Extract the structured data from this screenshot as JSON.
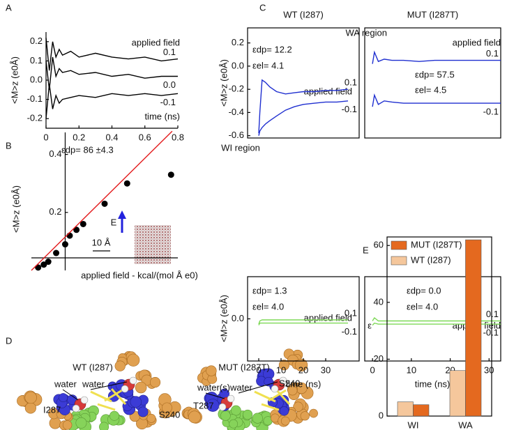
{
  "panel_labels": [
    "A",
    "B",
    "C",
    "D",
    "E"
  ],
  "chart_data": [
    {
      "type": "line",
      "ylabel": "<M>z (e0Å)",
      "xlabel": "time (ns)",
      "annotations": [
        "applied field"
      ],
      "xlim": [
        0,
        0.8
      ],
      "xticks": [
        0,
        0.2,
        0.4,
        0.6,
        0.8
      ],
      "ylim": [
        -0.25,
        0.25
      ],
      "yticks": [
        0.2,
        0.1,
        {
          "value": 0,
          "label": "0.0"
        },
        -0.1,
        -0.2
      ],
      "series": [
        {
          "name": "0.1",
          "color": "#000000",
          "x": [
            0,
            0.02,
            0.04,
            0.06,
            0.08,
            0.1,
            0.15,
            0.2,
            0.3,
            0.4,
            0.5,
            0.6,
            0.7,
            0.8
          ],
          "values": [
            0.22,
            0.05,
            0.2,
            0.12,
            0.16,
            0.13,
            0.15,
            0.12,
            0.14,
            0.12,
            0.11,
            0.12,
            0.1,
            0.11
          ]
        },
        {
          "name": "0.0",
          "color": "#000000",
          "x": [
            0,
            0.02,
            0.04,
            0.06,
            0.08,
            0.1,
            0.15,
            0.2,
            0.3,
            0.4,
            0.5,
            0.6,
            0.7,
            0.8
          ],
          "values": [
            0.1,
            -0.05,
            0.12,
            0.02,
            0.06,
            0.04,
            0.05,
            0.03,
            0.04,
            0.02,
            0.03,
            0.01,
            0.02,
            0.02
          ]
        },
        {
          "name": "-0.1",
          "color": "#000000",
          "x": [
            0,
            0.02,
            0.04,
            0.06,
            0.08,
            0.1,
            0.15,
            0.2,
            0.3,
            0.4,
            0.5,
            0.6,
            0.7,
            0.8
          ],
          "values": [
            -0.2,
            -0.02,
            -0.15,
            -0.08,
            -0.12,
            -0.1,
            -0.09,
            -0.08,
            -0.09,
            -0.07,
            -0.08,
            -0.07,
            -0.08,
            -0.07
          ]
        }
      ]
    },
    {
      "type": "scatter",
      "ylabel": "<M>z (e0Å)",
      "xlabel": "applied field - kcal/(mol Å e0)",
      "annotations": [
        "εdp= 86 ±4.3",
        "E",
        "10 Å"
      ],
      "xlim": [
        -0.3,
        1.0
      ],
      "ylim": [
        0,
        0.5
      ],
      "yticks": [
        0.2,
        0.4
      ],
      "series": [
        {
          "type": "scatter",
          "color": "#000000",
          "x": [
            -0.24,
            -0.19,
            -0.15,
            -0.08,
            0,
            0.04,
            0.1,
            0.16,
            0.35,
            0.55,
            0.94
          ],
          "values": [
            0.01,
            0.02,
            0.03,
            0.06,
            0.09,
            0.12,
            0.14,
            0.16,
            0.23,
            0.3,
            0.33
          ]
        },
        {
          "type": "line",
          "color": "#e31a1c",
          "x": [
            -0.3,
            0.95
          ],
          "values": [
            0,
            0.48
          ]
        }
      ]
    },
    {
      "type": "line",
      "title": "WT (I287)",
      "ylabel": "<M>z (e0Å)",
      "annotations": [
        "εdp= 12.2",
        "εel= 4.1",
        "applied field"
      ],
      "xlim": [
        -5,
        45
      ],
      "ylim": [
        -0.62,
        0.33
      ],
      "yticks": [
        0.2,
        {
          "value": 0,
          "label": "0.0"
        },
        -0.2,
        -0.4,
        -0.6
      ],
      "series": [
        {
          "name": "0.1",
          "color": "#1f2fd0",
          "x": [
            0,
            0.5,
            1.5,
            3,
            5,
            8,
            12,
            16,
            20,
            25,
            30,
            35,
            40
          ],
          "values": [
            -0.58,
            -0.4,
            -0.12,
            -0.14,
            -0.18,
            -0.22,
            -0.24,
            -0.23,
            -0.22,
            -0.22,
            -0.21,
            -0.21,
            -0.2
          ]
        },
        {
          "name": "-0.1",
          "color": "#1f2fd0",
          "x": [
            0,
            0.5,
            1.5,
            3,
            5,
            8,
            12,
            16,
            20,
            25,
            30,
            35,
            40
          ],
          "values": [
            -0.6,
            -0.56,
            -0.53,
            -0.5,
            -0.47,
            -0.43,
            -0.38,
            -0.35,
            -0.33,
            -0.32,
            -0.31,
            -0.31,
            -0.3
          ]
        }
      ]
    },
    {
      "type": "line",
      "title": "MUT (I287T)",
      "annotations": [
        "WA region",
        "applied field",
        "εdp= 57.5",
        "εel= 4.5"
      ],
      "xlim": [
        -2,
        33
      ],
      "ylim": [
        -0.62,
        0.33
      ],
      "series": [
        {
          "name": "0.1",
          "color": "#1f2fd0",
          "x": [
            0,
            0.5,
            1.5,
            3,
            5,
            8,
            12,
            16,
            20,
            25,
            30,
            33
          ],
          "values": [
            0.02,
            0.12,
            0.04,
            0.06,
            0.05,
            0.05,
            0.04,
            0.05,
            0.05,
            0.05,
            0.05,
            0.05
          ]
        },
        {
          "name": "-0.1",
          "color": "#1f2fd0",
          "x": [
            0,
            0.5,
            1.5,
            3,
            5,
            8,
            12,
            16,
            20,
            25,
            30,
            33
          ],
          "values": [
            -0.35,
            -0.25,
            -0.33,
            -0.3,
            -0.31,
            -0.32,
            -0.32,
            -0.32,
            -0.32,
            -0.32,
            -0.32,
            -0.32
          ]
        }
      ]
    },
    {
      "type": "line",
      "ylabel": "<M>z (e0Å)",
      "xlabel": "time (ns)",
      "annotations": [
        "WI region",
        "εdp= 1.3",
        "εel= 4.0",
        "applied field"
      ],
      "xlim": [
        -5,
        45
      ],
      "xticks": [
        0,
        10,
        20,
        30
      ],
      "ylim": [
        -0.4,
        0.4
      ],
      "yticks": [
        {
          "value": 0,
          "label": "0.0"
        }
      ],
      "series": [
        {
          "name": "0.1",
          "color": "#7ed957",
          "x": [
            0,
            0.5,
            1.5,
            3,
            5,
            8,
            12,
            16,
            20,
            25,
            30,
            35,
            40
          ],
          "values": [
            -0.05,
            -0.02,
            -0.01,
            -0.01,
            -0.01,
            -0.01,
            -0.01,
            -0.01,
            -0.01,
            -0.01,
            -0.01,
            -0.01,
            -0.01
          ]
        },
        {
          "name": "-0.1",
          "color": "#7ed957",
          "x": [
            0,
            0.5,
            1.5,
            3,
            5,
            8,
            12,
            16,
            20,
            25,
            30,
            35,
            40
          ],
          "values": [
            -0.06,
            -0.04,
            -0.04,
            -0.04,
            -0.04,
            -0.04,
            -0.04,
            -0.04,
            -0.04,
            -0.04,
            -0.04,
            -0.04,
            -0.04
          ]
        }
      ]
    },
    {
      "type": "line",
      "xlabel": "time (ns)",
      "annotations": [
        "εdp= 0.0",
        "εel= 4.0",
        "applied field"
      ],
      "xlim": [
        -2,
        33
      ],
      "xticks": [
        0,
        10,
        20,
        30
      ],
      "ylim": [
        -0.4,
        0.4
      ],
      "series": [
        {
          "name": "0.1",
          "color": "#7ed957",
          "x": [
            0,
            0.5,
            1.5,
            3,
            5,
            8,
            12,
            16,
            20,
            25,
            30,
            33
          ],
          "values": [
            -0.02,
            0.01,
            -0.02,
            -0.02,
            -0.02,
            -0.02,
            -0.02,
            -0.02,
            -0.02,
            -0.02,
            -0.02,
            -0.02
          ]
        },
        {
          "name": "-0.1",
          "color": "#7ed957",
          "x": [
            0,
            0.5,
            1.5,
            3,
            5,
            8,
            12,
            16,
            20,
            25,
            30,
            33
          ],
          "values": [
            -0.06,
            -0.04,
            -0.05,
            -0.05,
            -0.05,
            -0.05,
            -0.05,
            -0.05,
            -0.05,
            -0.05,
            -0.05,
            -0.05
          ]
        }
      ]
    },
    {
      "type": "bar",
      "ylabel": "ε",
      "categories": [
        "WI",
        "WA"
      ],
      "legend": "upper left",
      "ylim": [
        0,
        63
      ],
      "yticks": [
        0,
        20,
        40,
        60
      ],
      "series": [
        {
          "name": "MUT (I287T)",
          "color": "#e4691f",
          "values": [
            4,
            62
          ]
        },
        {
          "name": "WT (I287)",
          "color": "#f5c79c",
          "values": [
            5,
            16
          ]
        }
      ]
    }
  ],
  "panel_d": {
    "left": {
      "title": "WT (I287)",
      "labels": [
        "water",
        "water",
        "I287",
        "S240"
      ]
    },
    "right": {
      "title": "MUT (I287T)",
      "labels": [
        "water(s)",
        "water",
        "T287",
        "S240"
      ]
    }
  }
}
